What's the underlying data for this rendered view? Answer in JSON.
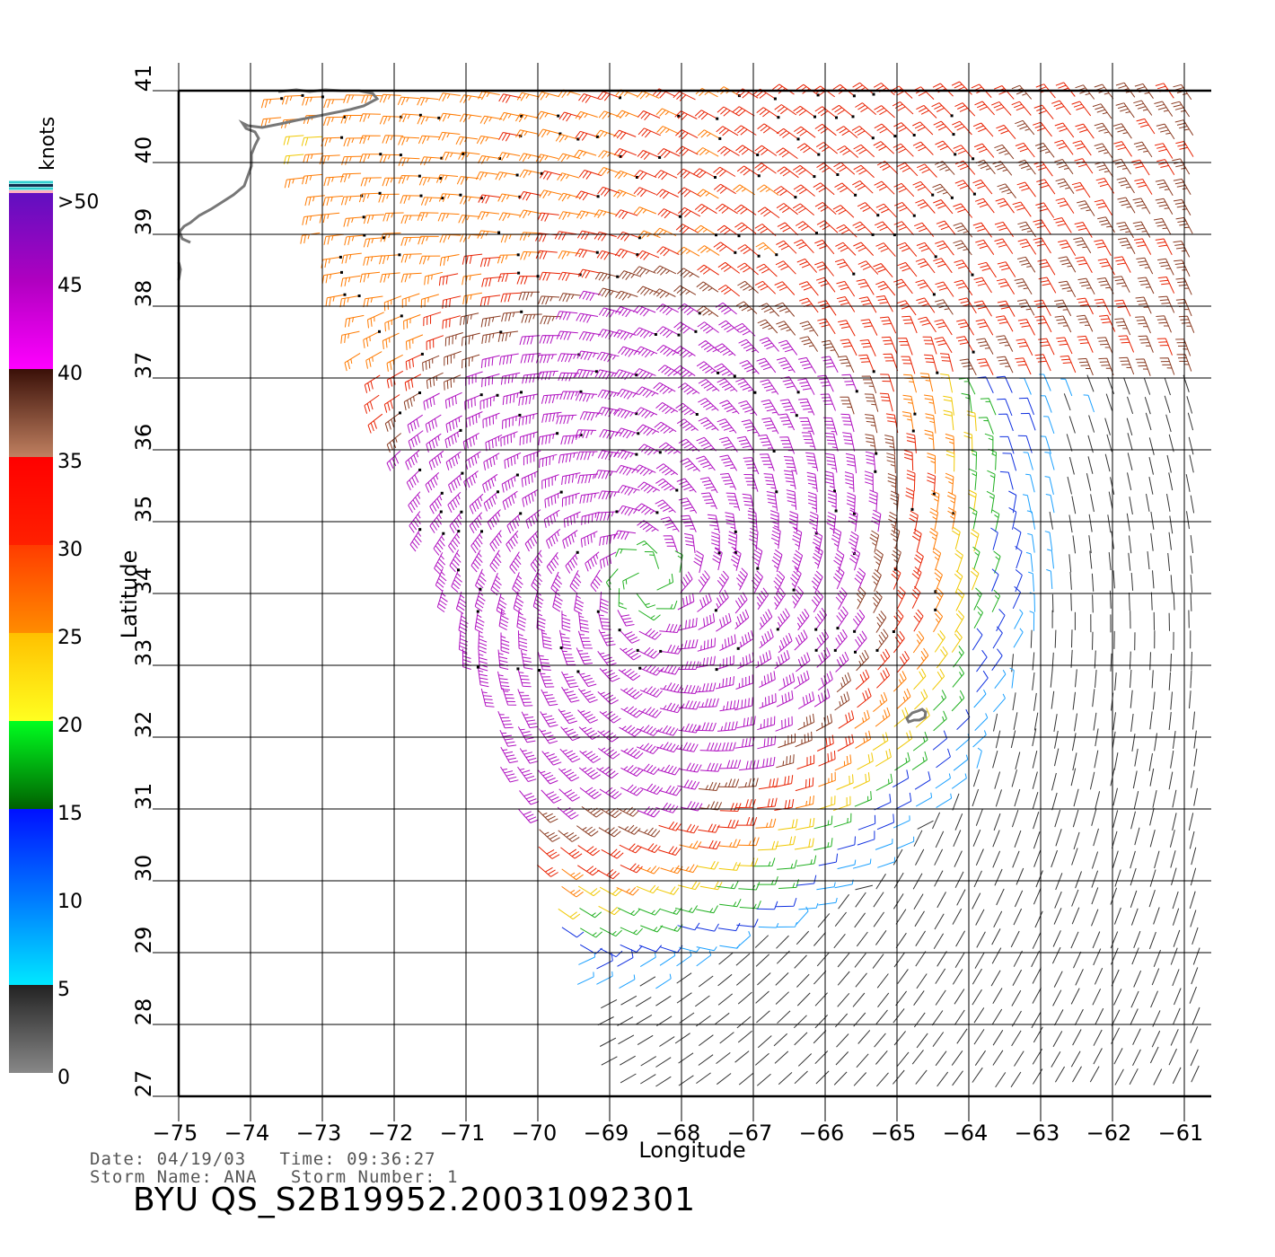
{
  "map": {
    "xlabel": "Longitude",
    "ylabel": "Latitude",
    "x_range": [
      -75,
      -60.6
    ],
    "y_range": [
      27,
      41.2
    ],
    "x_ticks": [
      "−75",
      "−74",
      "−73",
      "−72",
      "−71",
      "−70",
      "−69",
      "−68",
      "−67",
      "−66",
      "−65",
      "−64",
      "−63",
      "−62",
      "−61"
    ],
    "y_ticks": [
      "27",
      "28",
      "29",
      "30",
      "31",
      "32",
      "33",
      "34",
      "35",
      "36",
      "37",
      "38",
      "39",
      "40",
      "41"
    ],
    "storm_center": {
      "lon": -68.5,
      "lat": 34.2
    },
    "coastline_color": "#777777"
  },
  "colorbar": {
    "unit_label": "knots",
    "labels": [
      "0",
      "5",
      "10",
      "15",
      "20",
      "25",
      "30",
      "35",
      "40",
      "45",
      ">50"
    ],
    "segments": [
      {
        "from": 0,
        "to": 5,
        "colors": [
          "#888888",
          "#222222"
        ]
      },
      {
        "from": 5,
        "to": 10,
        "colors": [
          "#00e8ff",
          "#0078ff"
        ]
      },
      {
        "from": 10,
        "to": 15,
        "colors": [
          "#0078ff",
          "#0010ff"
        ]
      },
      {
        "from": 15,
        "to": 20,
        "colors": [
          "#006000",
          "#00ff20"
        ]
      },
      {
        "from": 20,
        "to": 25,
        "colors": [
          "#ffff20",
          "#ffc000"
        ]
      },
      {
        "from": 25,
        "to": 30,
        "colors": [
          "#ff8c00",
          "#ff3c00"
        ]
      },
      {
        "from": 30,
        "to": 35,
        "colors": [
          "#ff2000",
          "#ff0000"
        ]
      },
      {
        "from": 35,
        "to": 40,
        "colors": [
          "#c08060",
          "#3a1008"
        ]
      },
      {
        "from": 40,
        "to": 45,
        "colors": [
          "#ff00ff",
          "#b000c0"
        ]
      },
      {
        "from": 45,
        "to": 50,
        "colors": [
          "#b000c0",
          "#6010c0"
        ]
      }
    ],
    "top_strip_colors": [
      "#ffb0c0",
      "#30d0d0",
      "#103050",
      "#30d0d0"
    ]
  },
  "info": {
    "line1": "Date: 04/19/03   Time: 09:36:27",
    "line2": "Storm Name: ANA   Storm Number: 1"
  },
  "footer": {
    "title": "BYU  QS_S2B19952.20031092301"
  }
}
